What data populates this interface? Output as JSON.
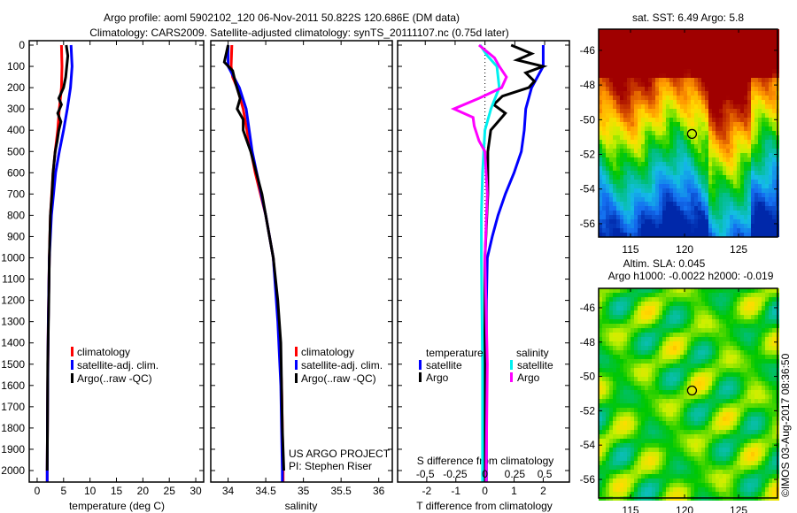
{
  "header": {
    "title_line1": "Argo profile: aoml 5902102_120 06-Nov-2011 50.822S 120.686E (DM data)",
    "title_line2": "Climatology: CARS2009. Satellite-adjusted climatology: synTS_20111107.nc (0.75d later)"
  },
  "footer": {
    "copyright": "©IMOS 03-Aug-2017 08:36:50",
    "project": "US ARGO PROJECT",
    "pi": "PI: Stephen Riser"
  },
  "colors": {
    "climatology": "#ff0000",
    "satellite": "#0000ff",
    "argo": "#000000",
    "sal_satellite": "#00f0f0",
    "sal_argo": "#ff00ff"
  },
  "chart_data": [
    {
      "type": "line",
      "id": "temperature",
      "xlabel": "temperature (deg C)",
      "ylabel": "depth",
      "xlim": [
        -1.5,
        31.5
      ],
      "ylim": [
        2080,
        0
      ],
      "xticks": [
        0,
        5,
        10,
        15,
        20,
        25,
        30
      ],
      "yticks": [
        0,
        100,
        200,
        300,
        400,
        500,
        600,
        700,
        800,
        900,
        1000,
        1100,
        1200,
        1300,
        1400,
        1500,
        1600,
        1700,
        1800,
        1900,
        2000
      ],
      "legend": [
        "climatology",
        "satellite-adj. clim.",
        "Argo(..raw -QC)"
      ],
      "series": [
        {
          "name": "climatology",
          "color": "#ff0000",
          "depth": [
            0,
            100,
            200,
            300,
            400,
            500,
            600,
            800,
            1000,
            1300,
            1600,
            2000,
            2080
          ],
          "values": [
            4.6,
            4.7,
            4.6,
            4.2,
            3.9,
            3.4,
            3.0,
            2.5,
            2.3,
            2.1,
            2.0,
            1.9,
            1.9
          ]
        },
        {
          "name": "satellite-adj. clim.",
          "color": "#0000ff",
          "depth": [
            0,
            100,
            200,
            300,
            400,
            500,
            600,
            800,
            1000,
            1300,
            1600,
            2000,
            2080
          ],
          "values": [
            6.4,
            6.6,
            6.3,
            5.7,
            5.0,
            4.2,
            3.5,
            2.7,
            2.3,
            2.1,
            2.0,
            1.9,
            1.9
          ]
        },
        {
          "name": "Argo(..raw -QC)",
          "color": "#000000",
          "depth": [
            0,
            50,
            100,
            150,
            200,
            250,
            280,
            320,
            360,
            400,
            450,
            500,
            600,
            700,
            800,
            900,
            1000,
            1200,
            1500,
            1800,
            2000
          ],
          "values": [
            5.5,
            5.8,
            5.6,
            5.4,
            5.0,
            4.1,
            4.6,
            3.9,
            4.5,
            4.1,
            3.8,
            3.4,
            3.0,
            2.8,
            2.5,
            2.4,
            2.3,
            2.2,
            2.0,
            1.95,
            1.9
          ]
        }
      ]
    },
    {
      "type": "line",
      "id": "salinity",
      "xlabel": "salinity",
      "xlim": [
        33.77,
        36.18
      ],
      "ylim": [
        2080,
        0
      ],
      "xticks": [
        34,
        34.5,
        35,
        35.5,
        36
      ],
      "legend": [
        "climatology",
        "satellite-adj. clim.",
        "Argo(..raw -QC)"
      ],
      "series": [
        {
          "name": "climatology",
          "color": "#ff0000",
          "depth": [
            0,
            100,
            150,
            200,
            300,
            400,
            600,
            800,
            1000,
            1300,
            1600,
            2000,
            2080
          ],
          "values": [
            34.05,
            34.04,
            34.06,
            34.12,
            34.2,
            34.25,
            34.36,
            34.5,
            34.6,
            34.67,
            34.71,
            34.73,
            34.73
          ]
        },
        {
          "name": "satellite-adj. clim.",
          "color": "#0000ff",
          "depth": [
            0,
            100,
            200,
            300,
            500,
            800,
            1000,
            1300,
            1600,
            2000,
            2080
          ],
          "values": [
            34.0,
            34.0,
            34.15,
            34.24,
            34.32,
            34.5,
            34.6,
            34.66,
            34.7,
            34.72,
            34.72
          ]
        },
        {
          "name": "Argo(..raw -QC)",
          "color": "#000000",
          "depth": [
            0,
            80,
            120,
            180,
            250,
            300,
            350,
            400,
            500,
            700,
            1000,
            1200,
            1400,
            1800,
            2000
          ],
          "values": [
            34.0,
            33.95,
            34.06,
            34.1,
            34.16,
            34.12,
            34.2,
            34.2,
            34.3,
            34.45,
            34.6,
            34.66,
            34.7,
            34.72,
            34.74
          ]
        }
      ]
    },
    {
      "type": "line",
      "id": "difference",
      "xlabel": "T difference from climatology",
      "xlabel_top": "S difference from climatology",
      "xlim": [
        -3.0,
        2.9
      ],
      "xticks": [
        -2,
        -1,
        0,
        1,
        2
      ],
      "xticks_top": [
        -0.5,
        -0.25,
        0,
        0.25,
        0.5
      ],
      "xticks_top_labels": [
        "-0.5",
        "-0.25",
        "0",
        "0.25",
        "0.5"
      ],
      "legend_headers": [
        "temperature",
        "salinity"
      ],
      "series": [
        {
          "name": "satellite",
          "group": "temperature",
          "color": "#0000ff",
          "depth": [
            0,
            100,
            200,
            300,
            400,
            500,
            600,
            700,
            800,
            900,
            1000,
            1200,
            2000,
            2080
          ],
          "values": [
            2.0,
            2.0,
            1.6,
            1.4,
            1.35,
            1.25,
            1.0,
            0.7,
            0.45,
            0.25,
            0.08,
            0.05,
            0.05,
            0.05
          ]
        },
        {
          "name": "Argo",
          "group": "temperature",
          "color": "#000000",
          "depth": [
            0,
            40,
            70,
            100,
            130,
            170,
            200,
            240,
            280,
            320,
            400,
            500,
            700,
            1000,
            1500,
            2000,
            2080
          ],
          "values": [
            0.9,
            1.6,
            1.1,
            2.0,
            1.4,
            1.7,
            1.5,
            0.6,
            0.3,
            0.7,
            0.2,
            0.1,
            0.1,
            0.0,
            0.0,
            0.0,
            0.0
          ]
        },
        {
          "name": "satellite",
          "group": "salinity",
          "color": "#00f0f0",
          "depth": [
            0,
            50,
            100,
            200,
            300,
            400,
            600,
            800,
            1000,
            1500,
            2000,
            2080
          ],
          "values": [
            -0.04,
            0.02,
            0.1,
            0.12,
            0.05,
            0.0,
            -0.02,
            -0.03,
            -0.03,
            -0.02,
            -0.02,
            -0.02
          ]
        },
        {
          "name": "Argo",
          "group": "salinity",
          "color": "#ff00ff",
          "depth": [
            0,
            60,
            100,
            150,
            200,
            250,
            300,
            340,
            380,
            450,
            500,
            700,
            1000,
            1500,
            2000,
            2080
          ],
          "values": [
            -0.05,
            0.08,
            0.12,
            0.18,
            0.14,
            -0.05,
            -0.26,
            -0.1,
            -0.09,
            -0.05,
            0.0,
            0.02,
            0.0,
            0.02,
            0.01,
            0.01
          ]
        }
      ]
    },
    {
      "type": "heatmap",
      "id": "sst-map",
      "title": "sat. SST: 6.49 Argo: 5.8",
      "xlim": [
        112.05,
        128.6
      ],
      "ylim": [
        -56.77,
        -44.78
      ],
      "xticks": [
        115,
        120,
        125
      ],
      "yticks": [
        -46,
        -48,
        -50,
        -52,
        -54,
        -56
      ],
      "marker": {
        "lon": 120.686,
        "lat": -50.822
      }
    },
    {
      "type": "heatmap",
      "id": "sla-map",
      "title_line1": "Altim. SLA: 0.045",
      "title_line2": "Argo h1000: -0.0022 h2000: -0.019",
      "xlim": [
        112.05,
        128.6
      ],
      "ylim": [
        -57.08,
        -44.87
      ],
      "xticks": [
        115,
        120,
        125
      ],
      "yticks": [
        -46,
        -48,
        -50,
        -52,
        -54,
        -56
      ],
      "marker": {
        "lon": 120.686,
        "lat": -50.822
      }
    }
  ]
}
